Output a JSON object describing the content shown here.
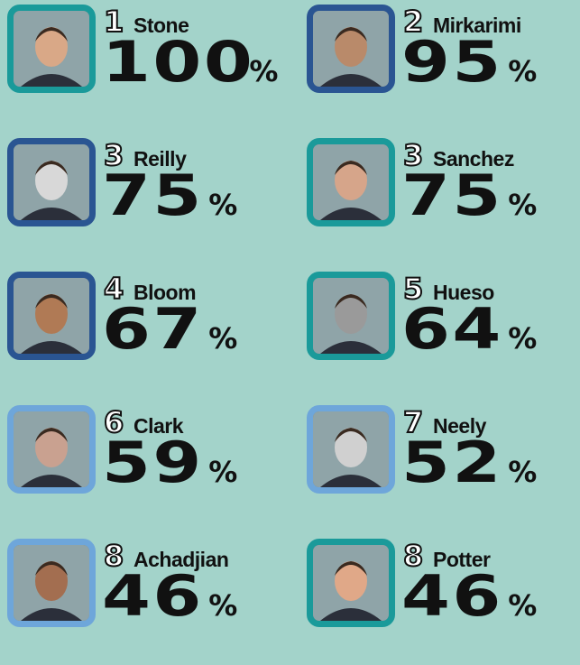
{
  "entries": [
    {
      "rank": "1",
      "name": "Stone",
      "score": "100",
      "unit": "%"
    },
    {
      "rank": "2",
      "name": "Mirkarimi",
      "score": "95",
      "unit": "%"
    },
    {
      "rank": "3",
      "name": "Reilly",
      "score": "75",
      "unit": "%"
    },
    {
      "rank": "3",
      "name": "Sanchez",
      "score": "75",
      "unit": "%"
    },
    {
      "rank": "4",
      "name": "Bloom",
      "score": "67",
      "unit": "%"
    },
    {
      "rank": "5",
      "name": "Hueso",
      "score": "64",
      "unit": "%"
    },
    {
      "rank": "6",
      "name": "Clark",
      "score": "59",
      "unit": "%"
    },
    {
      "rank": "7",
      "name": "Neely",
      "score": "52",
      "unit": "%"
    },
    {
      "rank": "8",
      "name": "Achadjian",
      "score": "46",
      "unit": "%"
    },
    {
      "rank": "8",
      "name": "Potter",
      "score": "46",
      "unit": "%"
    }
  ]
}
